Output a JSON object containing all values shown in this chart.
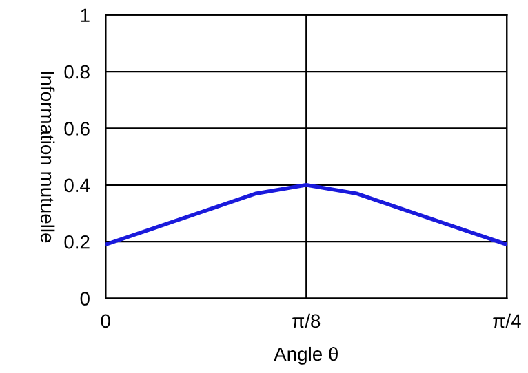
{
  "chart_data": {
    "type": "line",
    "xlabel": "Angle θ",
    "ylabel": "Information mutuelle",
    "x": [
      0,
      0.0982,
      0.1963,
      0.2945,
      0.3927,
      0.4909,
      0.589,
      0.6872,
      0.7854
    ],
    "series": [
      {
        "color": "#1a1adc",
        "values": [
          0.19,
          0.25,
          0.31,
          0.37,
          0.4,
          0.37,
          0.31,
          0.25,
          0.19
        ]
      }
    ],
    "xlim": [
      0,
      0.7854
    ],
    "ylim": [
      0,
      1
    ],
    "xticks": [
      0,
      {
        "value": 0.3927,
        "label": "π/8"
      },
      {
        "value": 0.7854,
        "label": "π/4"
      }
    ],
    "yticks": [
      0,
      0.2,
      0.4,
      0.6,
      0.8,
      1
    ],
    "grid": true,
    "marker": "none",
    "line_style": "solid"
  }
}
